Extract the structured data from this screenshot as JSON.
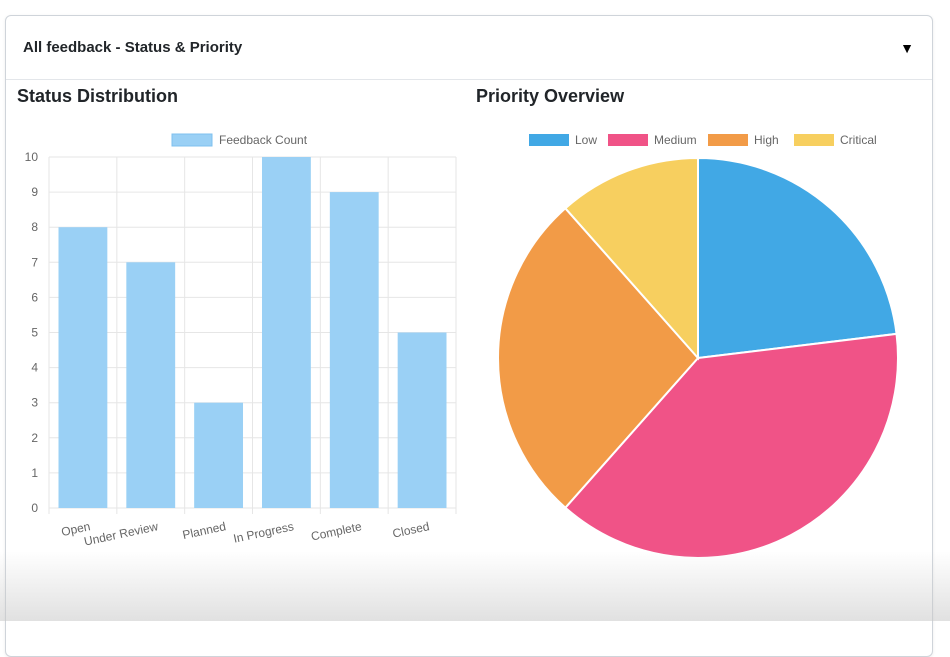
{
  "panel": {
    "title": "All feedback - Status & Priority",
    "toggle_icon": "caret-down-icon",
    "toggle_glyph": "▼"
  },
  "chart_data": [
    {
      "type": "bar",
      "title": "Status Distribution",
      "categories": [
        "Open",
        "Under Review",
        "Planned",
        "In Progress",
        "Complete",
        "Closed"
      ],
      "series": [
        {
          "name": "Feedback Count",
          "values": [
            8,
            7,
            3,
            10,
            9,
            5
          ],
          "color": "#9ad0f5"
        }
      ],
      "ylim": [
        0,
        10
      ],
      "yticks": [
        "0",
        "1",
        "2",
        "3",
        "4",
        "5",
        "6",
        "7",
        "8",
        "9",
        "10"
      ],
      "grid": true,
      "legend": "top"
    },
    {
      "type": "pie",
      "title": "Priority Overview",
      "labels": [
        "Low",
        "Medium",
        "High",
        "Critical"
      ],
      "values": [
        6,
        10,
        7,
        3
      ],
      "colors": [
        "#41a8e5",
        "#f05387",
        "#f29b47",
        "#f7cf5f"
      ],
      "legend": "top"
    }
  ]
}
